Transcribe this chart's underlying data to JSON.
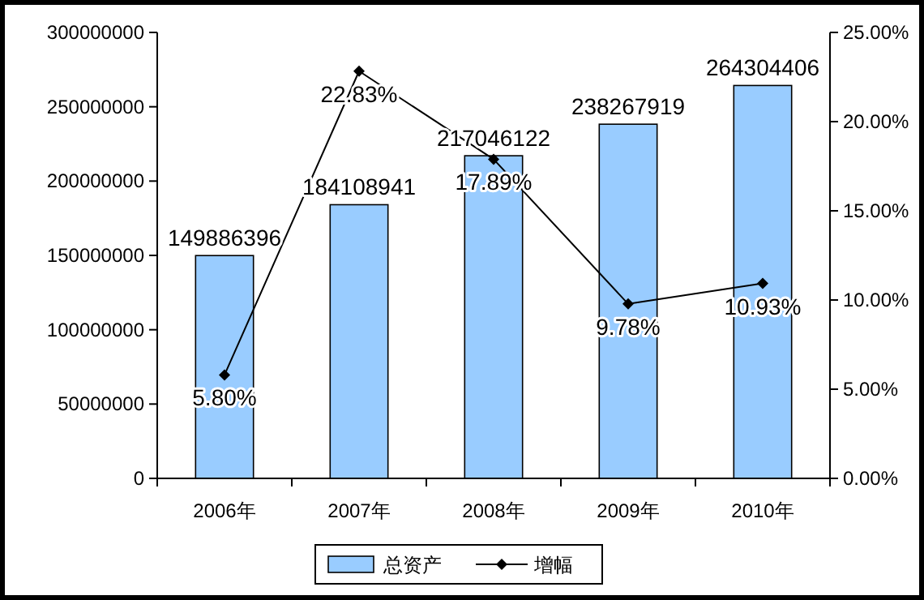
{
  "chart_data": {
    "type": "bar",
    "categories": [
      "2006年",
      "2007年",
      "2008年",
      "2009年",
      "2010年"
    ],
    "series": [
      {
        "name": "总资产",
        "color": "#99ccff",
        "values": [
          149886396,
          184108941,
          217046122,
          238267919,
          264304406
        ],
        "value_labels": [
          "149886396",
          "184108941",
          "217046122",
          "238267919",
          "264304406"
        ]
      },
      {
        "name": "增幅",
        "type": "line",
        "axis": "y2",
        "color": "#000000",
        "marker": "diamond",
        "values": [
          5.8,
          22.83,
          17.89,
          9.78,
          10.93
        ],
        "value_labels": [
          "5.80%",
          "22.83%",
          "17.89%",
          "9.78%",
          "10.93%"
        ]
      }
    ],
    "ylim": [
      0,
      300000000
    ],
    "yticks": [
      0,
      50000000,
      100000000,
      150000000,
      200000000,
      250000000,
      300000000
    ],
    "y2lim": [
      0,
      25
    ],
    "y2ticks": [
      {
        "value": 0,
        "label": "0.00%"
      },
      {
        "value": 5,
        "label": "5.00%"
      },
      {
        "value": 10,
        "label": "10.00%"
      },
      {
        "value": 15,
        "label": "15.00%"
      },
      {
        "value": 20,
        "label": "20.00%"
      },
      {
        "value": 25,
        "label": "25.00%"
      }
    ],
    "legend": "bottom",
    "grid": false
  }
}
